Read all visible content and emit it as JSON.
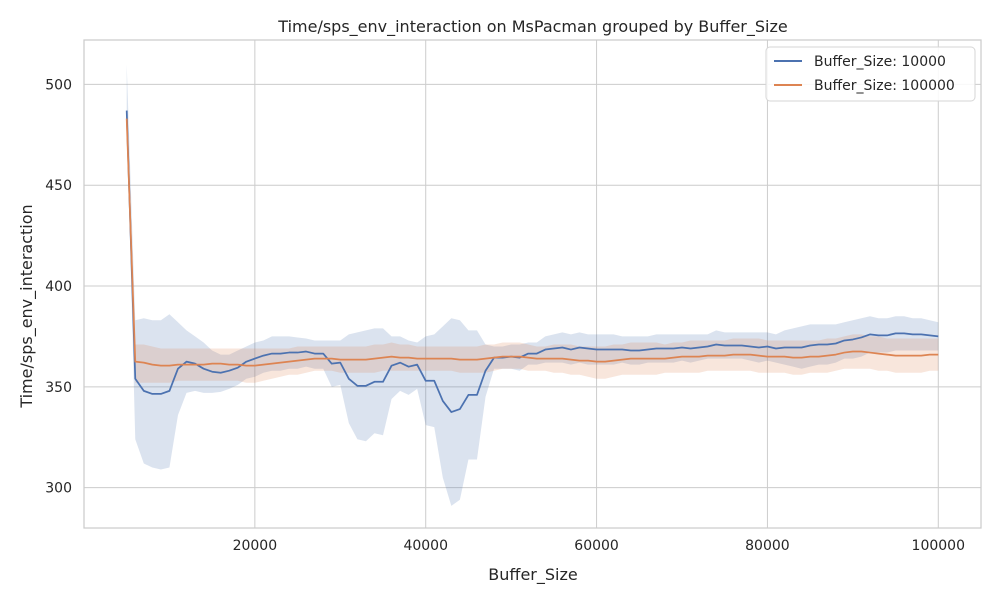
{
  "chart_data": {
    "type": "line",
    "title": "Time/sps_env_interaction on MsPacman grouped by Buffer_Size",
    "xlabel": "Buffer_Size",
    "ylabel": "Time/sps_env_interaction",
    "xlim": [
      0,
      105000
    ],
    "ylim": [
      280,
      522
    ],
    "xticks": [
      20000,
      40000,
      60000,
      80000,
      100000
    ],
    "xtick_labels": [
      "20000",
      "40000",
      "60000",
      "80000",
      "100000"
    ],
    "yticks": [
      300,
      350,
      400,
      450,
      500
    ],
    "ytick_labels": [
      "300",
      "350",
      "400",
      "450",
      "500"
    ],
    "grid": true,
    "legend_position": "top-right",
    "x": [
      5000,
      6000,
      7000,
      8000,
      9000,
      10000,
      11000,
      12000,
      13000,
      14000,
      15000,
      16000,
      17000,
      18000,
      19000,
      20000,
      21000,
      22000,
      23000,
      24000,
      25000,
      26000,
      27000,
      28000,
      29000,
      30000,
      31000,
      32000,
      33000,
      34000,
      35000,
      36000,
      37000,
      38000,
      39000,
      40000,
      41000,
      42000,
      43000,
      44000,
      45000,
      46000,
      47000,
      48000,
      49000,
      50000,
      51000,
      52000,
      53000,
      54000,
      55000,
      56000,
      57000,
      58000,
      59000,
      60000,
      61000,
      62000,
      63000,
      64000,
      65000,
      66000,
      67000,
      68000,
      69000,
      70000,
      71000,
      72000,
      73000,
      74000,
      75000,
      76000,
      77000,
      78000,
      79000,
      80000,
      81000,
      82000,
      83000,
      84000,
      85000,
      86000,
      87000,
      88000,
      89000,
      90000,
      91000,
      92000,
      93000,
      94000,
      95000,
      96000,
      97000,
      98000,
      99000,
      100000
    ],
    "series": [
      {
        "name": "Buffer_Size: 10000",
        "color": "#4c72b0",
        "values": [
          487,
          354,
          348,
          346.5,
          346.5,
          348,
          359,
          362.5,
          361.5,
          359,
          357.5,
          357,
          358,
          359.5,
          362.5,
          364,
          365.5,
          366.5,
          366.5,
          367,
          367,
          367.5,
          366.5,
          366.5,
          361.5,
          362,
          354,
          350.5,
          350.5,
          352.5,
          352.5,
          360.5,
          362,
          360,
          361,
          353,
          353,
          343,
          337.5,
          339,
          346,
          346,
          358,
          364.5,
          364.5,
          365,
          364.5,
          366.5,
          366.5,
          368.5,
          369,
          369.5,
          368.5,
          369.5,
          369,
          368.5,
          368.5,
          368.5,
          368.5,
          368,
          368,
          368.5,
          369,
          369,
          369,
          369.5,
          369,
          369.5,
          370,
          371,
          370.5,
          370.5,
          370.5,
          370,
          369.5,
          370,
          369,
          369.5,
          369.5,
          369.5,
          370.5,
          371,
          371,
          371.5,
          373,
          373.5,
          374.5,
          376,
          375.5,
          375.5,
          376.5,
          376.5,
          376,
          376,
          375.5,
          375
        ],
        "lower": [
          485,
          324,
          312,
          310,
          309,
          310,
          336,
          347,
          348,
          347,
          347,
          347.5,
          349,
          351,
          354,
          355,
          357,
          358,
          358,
          359,
          359,
          360,
          359,
          359,
          350,
          351,
          332,
          324,
          323,
          327,
          326,
          344,
          348,
          346,
          349,
          331,
          330,
          305,
          291,
          294,
          314,
          314,
          345,
          359,
          359,
          359,
          358,
          361,
          361,
          362,
          362,
          362,
          361,
          362,
          361,
          361,
          361,
          361,
          362,
          361,
          361,
          362,
          362,
          362,
          362,
          363,
          362,
          363,
          364,
          364,
          364,
          364,
          364,
          363,
          362,
          363,
          362,
          361,
          360,
          359,
          360,
          361,
          361,
          362,
          364,
          364,
          365,
          367,
          367,
          367,
          368,
          368,
          368,
          368,
          368,
          368
        ],
        "upper": [
          510,
          383,
          384,
          383,
          383,
          386,
          382,
          378,
          375,
          372,
          368,
          366,
          366,
          368,
          370,
          372,
          373,
          375,
          375,
          375,
          374.5,
          374,
          373,
          373,
          373,
          373,
          376,
          377,
          378,
          379,
          379,
          375,
          375,
          373,
          372,
          375,
          376,
          380,
          384,
          383,
          378,
          378,
          371,
          370,
          370,
          371,
          371,
          372,
          372,
          375,
          376,
          377,
          376,
          377,
          376,
          376,
          376,
          376,
          375,
          375,
          375,
          375,
          376,
          376,
          376,
          376,
          376,
          376,
          376,
          378,
          377,
          377,
          377,
          377,
          377,
          377,
          376,
          378,
          379,
          380,
          381,
          381,
          381,
          381,
          382,
          383,
          384,
          385,
          384,
          384,
          385,
          385,
          384,
          384,
          383,
          382
        ]
      },
      {
        "name": "Buffer_Size: 100000",
        "color": "#dd8452",
        "values": [
          483,
          362.5,
          362,
          361,
          360.5,
          360.5,
          361,
          361,
          361,
          361,
          361.5,
          361.5,
          361,
          361,
          360.5,
          360.5,
          361,
          361.5,
          362,
          362.5,
          363,
          363.5,
          364,
          364,
          364,
          363.5,
          363.5,
          363.5,
          363.5,
          364,
          364.5,
          365,
          364.5,
          364.5,
          364,
          364,
          364,
          364,
          364,
          363.5,
          363.5,
          363.5,
          364,
          364.5,
          365,
          365,
          365,
          364.5,
          364,
          364,
          364,
          364,
          363.5,
          363,
          363,
          362.5,
          362.5,
          363,
          363.5,
          364,
          364,
          364,
          364,
          364,
          364.5,
          365,
          365,
          365,
          365.5,
          365.5,
          365.5,
          366,
          366,
          366,
          365.5,
          365,
          365,
          365,
          364.5,
          364.5,
          365,
          365,
          365.5,
          366,
          367,
          367.5,
          367.5,
          367,
          366.5,
          366,
          365.5,
          365.5,
          365.5,
          365.5,
          366,
          366
        ],
        "lower": [
          481,
          352,
          352,
          352,
          352,
          352,
          353,
          353,
          353,
          353,
          353,
          353,
          353,
          353,
          352,
          352,
          353,
          354,
          355,
          356,
          356,
          357,
          358,
          358,
          358,
          357,
          357,
          357,
          357,
          357,
          358,
          358,
          358,
          358,
          358,
          358,
          358,
          358,
          358,
          357,
          357,
          357,
          357,
          358,
          359,
          359,
          359,
          358,
          358,
          358,
          357,
          357,
          356,
          356,
          355,
          354,
          354,
          355,
          356,
          356,
          356,
          356,
          356,
          357,
          357,
          357,
          357,
          357,
          358,
          358,
          358,
          358,
          358,
          358,
          357,
          357,
          357,
          357,
          356,
          356,
          357,
          357,
          357,
          358,
          359,
          359,
          359,
          359,
          358,
          358,
          357,
          357,
          357,
          357,
          358,
          358
        ],
        "upper": [
          486,
          371,
          371,
          370,
          369,
          369,
          369,
          369,
          369,
          369,
          369,
          369,
          369,
          369,
          369,
          369,
          369,
          369,
          369,
          369,
          370,
          370,
          370,
          370,
          370,
          370,
          370,
          370,
          370,
          371,
          371,
          372,
          371,
          371,
          370,
          370,
          370,
          370,
          370,
          370,
          370,
          370,
          371,
          371,
          372,
          372,
          372,
          371,
          370,
          370,
          371,
          371,
          371,
          370,
          370,
          370,
          370,
          371,
          371,
          372,
          372,
          372,
          372,
          371,
          372,
          372,
          373,
          373,
          373,
          373,
          373,
          374,
          374,
          374,
          374,
          373,
          373,
          373,
          373,
          373,
          373,
          373,
          374,
          374,
          375,
          376,
          376,
          375,
          375,
          374,
          374,
          374,
          374,
          374,
          374,
          374
        ]
      }
    ]
  }
}
